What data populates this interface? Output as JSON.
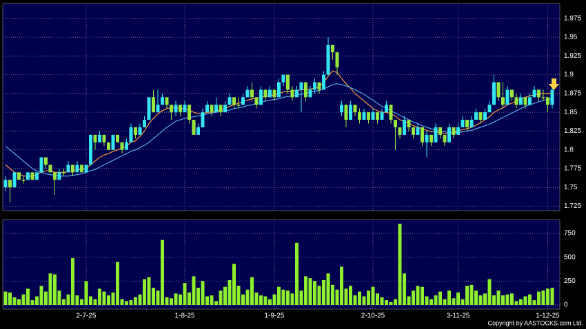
{
  "chart_data": [
    {
      "type": "candlestick",
      "open": [
        1.75,
        1.76,
        1.75,
        1.77,
        1.76,
        1.76,
        1.77,
        1.76,
        1.77,
        1.79,
        1.78,
        1.77,
        1.76,
        1.77,
        1.77,
        1.78,
        1.77,
        1.78,
        1.77,
        1.78,
        1.82,
        1.81,
        1.82,
        1.81,
        1.8,
        1.82,
        1.81,
        1.8,
        1.81,
        1.83,
        1.82,
        1.83,
        1.84,
        1.87,
        1.85,
        1.86,
        1.87,
        1.86,
        1.85,
        1.86,
        1.85,
        1.86,
        1.84,
        1.82,
        1.83,
        1.85,
        1.86,
        1.85,
        1.86,
        1.85,
        1.86,
        1.87,
        1.86,
        1.86,
        1.87,
        1.88,
        1.87,
        1.86,
        1.88,
        1.87,
        1.88,
        1.87,
        1.89,
        1.9,
        1.88,
        1.87,
        1.88,
        1.89,
        1.87,
        1.88,
        1.89,
        1.88,
        1.9,
        1.94,
        1.93,
        1.85,
        1.86,
        1.84,
        1.86,
        1.85,
        1.84,
        1.85,
        1.84,
        1.85,
        1.84,
        1.85,
        1.86,
        1.84,
        1.83,
        1.82,
        1.84,
        1.83,
        1.82,
        1.83,
        1.81,
        1.82,
        1.81,
        1.83,
        1.82,
        1.81,
        1.83,
        1.82,
        1.83,
        1.84,
        1.83,
        1.84,
        1.85,
        1.84,
        1.85,
        1.86,
        1.89,
        1.87,
        1.86,
        1.88,
        1.87,
        1.86,
        1.87,
        1.86,
        1.87,
        1.88,
        1.87,
        1.87,
        1.86
      ],
      "high": [
        1.765,
        1.76,
        1.77,
        1.77,
        1.765,
        1.77,
        1.77,
        1.77,
        1.79,
        1.79,
        1.78,
        1.77,
        1.775,
        1.775,
        1.785,
        1.78,
        1.785,
        1.78,
        1.78,
        1.82,
        1.82,
        1.825,
        1.82,
        1.81,
        1.82,
        1.82,
        1.81,
        1.815,
        1.835,
        1.83,
        1.835,
        1.845,
        1.87,
        1.88,
        1.88,
        1.875,
        1.87,
        1.86,
        1.865,
        1.86,
        1.865,
        1.86,
        1.84,
        1.835,
        1.855,
        1.865,
        1.86,
        1.87,
        1.86,
        1.865,
        1.875,
        1.87,
        1.87,
        1.875,
        1.885,
        1.89,
        1.87,
        1.885,
        1.88,
        1.885,
        1.88,
        1.895,
        1.9,
        1.9,
        1.885,
        1.885,
        1.89,
        1.89,
        1.885,
        1.895,
        1.89,
        1.905,
        1.95,
        1.94,
        1.93,
        1.865,
        1.86,
        1.865,
        1.86,
        1.855,
        1.855,
        1.85,
        1.855,
        1.85,
        1.855,
        1.865,
        1.86,
        1.84,
        1.83,
        1.845,
        1.84,
        1.83,
        1.835,
        1.83,
        1.825,
        1.82,
        1.835,
        1.83,
        1.82,
        1.835,
        1.83,
        1.835,
        1.845,
        1.84,
        1.845,
        1.855,
        1.85,
        1.855,
        1.865,
        1.9,
        1.89,
        1.89,
        1.885,
        1.88,
        1.875,
        1.875,
        1.87,
        1.875,
        1.885,
        1.88,
        1.88,
        1.87,
        1.885
      ],
      "low": [
        1.745,
        1.73,
        1.75,
        1.76,
        1.755,
        1.76,
        1.76,
        1.76,
        1.77,
        1.775,
        1.77,
        1.74,
        1.76,
        1.765,
        1.77,
        1.765,
        1.77,
        1.77,
        1.77,
        1.78,
        1.8,
        1.81,
        1.805,
        1.8,
        1.8,
        1.81,
        1.795,
        1.8,
        1.81,
        1.815,
        1.82,
        1.83,
        1.84,
        1.85,
        1.85,
        1.86,
        1.855,
        1.84,
        1.845,
        1.845,
        1.85,
        1.835,
        1.82,
        1.82,
        1.83,
        1.85,
        1.845,
        1.85,
        1.845,
        1.85,
        1.86,
        1.855,
        1.855,
        1.86,
        1.87,
        1.865,
        1.855,
        1.86,
        1.865,
        1.87,
        1.865,
        1.87,
        1.885,
        1.875,
        1.865,
        1.87,
        1.85,
        1.865,
        1.87,
        1.875,
        1.875,
        1.88,
        1.9,
        1.92,
        1.9,
        1.845,
        1.83,
        1.84,
        1.845,
        1.835,
        1.84,
        1.835,
        1.84,
        1.835,
        1.84,
        1.85,
        1.835,
        1.8,
        1.815,
        1.82,
        1.825,
        1.815,
        1.82,
        1.805,
        1.79,
        1.805,
        1.81,
        1.815,
        1.805,
        1.81,
        1.815,
        1.82,
        1.83,
        1.825,
        1.83,
        1.84,
        1.835,
        1.84,
        1.85,
        1.86,
        1.865,
        1.855,
        1.86,
        1.865,
        1.855,
        1.86,
        1.855,
        1.86,
        1.87,
        1.865,
        1.865,
        1.85,
        1.855
      ],
      "close": [
        1.76,
        1.75,
        1.77,
        1.76,
        1.76,
        1.77,
        1.76,
        1.77,
        1.79,
        1.78,
        1.77,
        1.76,
        1.77,
        1.77,
        1.78,
        1.77,
        1.78,
        1.77,
        1.78,
        1.82,
        1.81,
        1.82,
        1.81,
        1.8,
        1.82,
        1.81,
        1.8,
        1.81,
        1.83,
        1.82,
        1.83,
        1.84,
        1.87,
        1.85,
        1.86,
        1.87,
        1.86,
        1.85,
        1.86,
        1.85,
        1.86,
        1.84,
        1.82,
        1.83,
        1.85,
        1.86,
        1.85,
        1.86,
        1.85,
        1.86,
        1.87,
        1.86,
        1.86,
        1.87,
        1.88,
        1.87,
        1.86,
        1.88,
        1.87,
        1.88,
        1.87,
        1.89,
        1.9,
        1.88,
        1.87,
        1.88,
        1.89,
        1.87,
        1.88,
        1.89,
        1.88,
        1.9,
        1.94,
        1.93,
        1.91,
        1.86,
        1.84,
        1.86,
        1.85,
        1.84,
        1.85,
        1.84,
        1.85,
        1.84,
        1.85,
        1.86,
        1.84,
        1.83,
        1.82,
        1.84,
        1.83,
        1.82,
        1.83,
        1.81,
        1.82,
        1.81,
        1.83,
        1.82,
        1.81,
        1.83,
        1.82,
        1.83,
        1.84,
        1.83,
        1.84,
        1.85,
        1.84,
        1.85,
        1.86,
        1.89,
        1.87,
        1.86,
        1.88,
        1.87,
        1.86,
        1.87,
        1.86,
        1.87,
        1.88,
        1.87,
        1.87,
        1.86,
        1.88
      ],
      "up_color": "#33e6f0",
      "down_color": "#99e83c",
      "lines": [
        {
          "color": "#ff9a3c",
          "values": [
            1.78,
            1.775,
            1.77,
            1.768,
            1.765,
            1.765,
            1.765,
            1.767,
            1.77,
            1.772,
            1.772,
            1.77,
            1.77,
            1.77,
            1.771,
            1.772,
            1.773,
            1.774,
            1.775,
            1.78,
            1.785,
            1.79,
            1.793,
            1.795,
            1.798,
            1.8,
            1.802,
            1.805,
            1.81,
            1.812,
            1.818,
            1.825,
            1.835,
            1.842,
            1.848,
            1.852,
            1.855,
            1.856,
            1.856,
            1.855,
            1.855,
            1.853,
            1.85,
            1.848,
            1.848,
            1.85,
            1.85,
            1.852,
            1.853,
            1.855,
            1.858,
            1.86,
            1.862,
            1.864,
            1.866,
            1.868,
            1.868,
            1.87,
            1.871,
            1.872,
            1.873,
            1.875,
            1.877,
            1.878,
            1.878,
            1.879,
            1.88,
            1.88,
            1.881,
            1.882,
            1.884,
            1.89,
            1.898,
            1.905,
            1.903,
            1.895,
            1.888,
            1.882,
            1.875,
            1.87,
            1.865,
            1.86,
            1.855,
            1.852,
            1.85,
            1.85,
            1.848,
            1.845,
            1.84,
            1.838,
            1.835,
            1.832,
            1.83,
            1.828,
            1.826,
            1.824,
            1.824,
            1.823,
            1.822,
            1.822,
            1.823,
            1.825,
            1.827,
            1.828,
            1.83,
            1.833,
            1.836,
            1.84,
            1.844,
            1.85,
            1.853,
            1.856,
            1.86,
            1.862,
            1.865,
            1.868,
            1.87,
            1.872,
            1.873,
            1.874,
            1.875,
            1.875,
            1.876
          ]
        },
        {
          "color": "#58a8e8",
          "values": [
            1.805,
            1.8,
            1.795,
            1.79,
            1.785,
            1.78,
            1.775,
            1.772,
            1.77,
            1.768,
            1.767,
            1.766,
            1.765,
            1.765,
            1.765,
            1.766,
            1.767,
            1.768,
            1.77,
            1.772,
            1.774,
            1.777,
            1.78,
            1.783,
            1.786,
            1.789,
            1.792,
            1.795,
            1.798,
            1.8,
            1.803,
            1.806,
            1.81,
            1.815,
            1.82,
            1.825,
            1.83,
            1.834,
            1.838,
            1.84,
            1.842,
            1.843,
            1.844,
            1.845,
            1.846,
            1.848,
            1.849,
            1.85,
            1.851,
            1.852,
            1.853,
            1.855,
            1.856,
            1.857,
            1.859,
            1.86,
            1.862,
            1.863,
            1.865,
            1.866,
            1.867,
            1.868,
            1.87,
            1.871,
            1.872,
            1.873,
            1.874,
            1.875,
            1.877,
            1.878,
            1.879,
            1.881,
            1.884,
            1.887,
            1.888,
            1.887,
            1.885,
            1.883,
            1.88,
            1.877,
            1.874,
            1.87,
            1.866,
            1.862,
            1.858,
            1.855,
            1.852,
            1.849,
            1.846,
            1.843,
            1.84,
            1.837,
            1.835,
            1.832,
            1.83,
            1.828,
            1.826,
            1.825,
            1.824,
            1.823,
            1.823,
            1.823,
            1.824,
            1.825,
            1.826,
            1.828,
            1.83,
            1.832,
            1.834,
            1.837,
            1.84,
            1.843,
            1.846,
            1.849,
            1.852,
            1.855,
            1.858,
            1.86,
            1.862,
            1.864,
            1.866,
            1.867,
            1.868
          ]
        }
      ],
      "ylim": [
        1.719,
        1.995
      ],
      "yticks": [
        1.725,
        1.75,
        1.775,
        1.8,
        1.825,
        1.85,
        1.875,
        1.9,
        1.925,
        1.95,
        1.975
      ],
      "grid": true
    },
    {
      "type": "bar",
      "categories": [
        null,
        null,
        null,
        null,
        null,
        null,
        null,
        null,
        null,
        null,
        null,
        null,
        null,
        null,
        null,
        null,
        null,
        null,
        "2-7-25",
        null,
        null,
        null,
        null,
        null,
        null,
        null,
        null,
        null,
        null,
        null,
        null,
        null,
        null,
        null,
        null,
        null,
        null,
        null,
        null,
        null,
        "1-8-25",
        null,
        null,
        null,
        null,
        null,
        null,
        null,
        null,
        null,
        null,
        null,
        null,
        null,
        null,
        null,
        null,
        null,
        null,
        null,
        "1-9-25",
        null,
        null,
        null,
        null,
        null,
        null,
        null,
        null,
        null,
        null,
        null,
        null,
        null,
        null,
        null,
        null,
        null,
        null,
        null,
        null,
        null,
        "2-10-25",
        null,
        null,
        null,
        null,
        null,
        null,
        null,
        null,
        null,
        null,
        null,
        null,
        null,
        null,
        null,
        null,
        null,
        null,
        "3-11-25",
        null,
        null,
        null,
        null,
        null,
        null,
        null,
        null,
        null,
        null,
        null,
        null,
        null,
        null,
        null,
        null,
        null,
        null,
        null,
        "1-12-25",
        null
      ],
      "values": [
        140,
        130,
        80,
        60,
        110,
        170,
        50,
        90,
        200,
        140,
        330,
        320,
        150,
        60,
        110,
        490,
        100,
        60,
        250,
        90,
        60,
        170,
        140,
        100,
        130,
        450,
        60,
        40,
        50,
        80,
        110,
        270,
        290,
        180,
        150,
        680,
        80,
        70,
        120,
        110,
        230,
        130,
        300,
        180,
        250,
        90,
        100,
        40,
        150,
        190,
        260,
        430,
        200,
        110,
        160,
        290,
        130,
        100,
        90,
        60,
        110,
        190,
        160,
        150,
        120,
        650,
        150,
        300,
        280,
        250,
        200,
        260,
        330,
        210,
        160,
        400,
        170,
        200,
        100,
        140,
        90,
        150,
        190,
        120,
        80,
        50,
        30,
        60,
        850,
        330,
        90,
        150,
        200,
        190,
        90,
        60,
        100,
        140,
        60,
        150,
        70,
        130,
        60,
        200,
        210,
        150,
        100,
        120,
        270,
        100,
        150,
        100,
        110,
        120,
        40,
        60,
        90,
        110,
        50,
        140,
        150,
        170,
        180
      ],
      "color": "#8ef02a",
      "ylim": [
        -43,
        894
      ],
      "yticks": [
        0,
        250,
        500,
        750
      ],
      "grid": true
    }
  ],
  "footer": "Copyright by AASTOCKS.com Ltd."
}
